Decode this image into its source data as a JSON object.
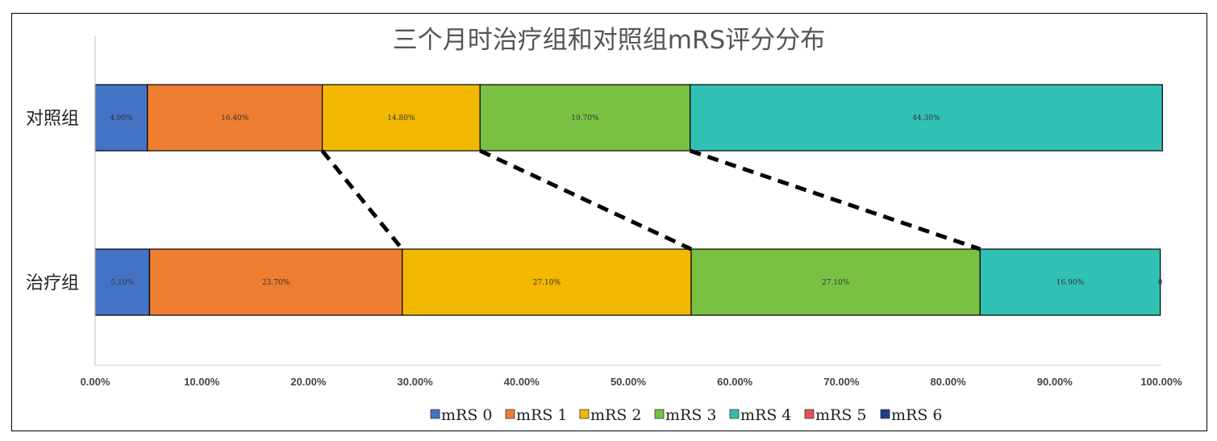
{
  "chart_data": {
    "type": "bar",
    "orientation": "horizontal",
    "stacked": true,
    "title": "三个月时治疗组和对照组mRS评分分布",
    "categories": [
      "对照组",
      "治疗组"
    ],
    "x_ticks": [
      "0.00%",
      "10.00%",
      "20.00%",
      "30.00%",
      "40.00%",
      "50.00%",
      "60.00%",
      "70.00%",
      "80.00%",
      "90.00%",
      "100.00%"
    ],
    "xlim": [
      0,
      100
    ],
    "grid": false,
    "legend_position": "bottom",
    "series": [
      {
        "name": "mRS 0",
        "color": "#4472C4",
        "values": [
          4.9,
          5.1
        ],
        "labels": [
          "4.90%",
          "5.10%"
        ]
      },
      {
        "name": "mRS 1",
        "color": "#ED7D31",
        "values": [
          16.4,
          23.7
        ],
        "labels": [
          "16.40%",
          "23.70%"
        ]
      },
      {
        "name": "mRS 2",
        "color": "#F2B800",
        "values": [
          14.8,
          27.1
        ],
        "labels": [
          "14.80%",
          "27.10%"
        ]
      },
      {
        "name": "mRS 3",
        "color": "#7AC143",
        "values": [
          19.7,
          27.1
        ],
        "labels": [
          "19.70%",
          "27.10%"
        ]
      },
      {
        "name": "mRS 4",
        "color": "#31C1B4",
        "values": [
          44.3,
          16.9
        ],
        "labels": [
          "44.30%",
          "16.90%"
        ]
      },
      {
        "name": "mRS 5",
        "color": "#E8505B",
        "values": [
          0,
          0
        ],
        "labels": [
          "",
          ""
        ]
      },
      {
        "name": "mRS 6",
        "color": "#1F3E8A",
        "values": [
          0,
          0
        ],
        "labels": [
          "",
          "0"
        ]
      }
    ],
    "connector_lines": "dashed",
    "bar_border_color": "#000000"
  }
}
